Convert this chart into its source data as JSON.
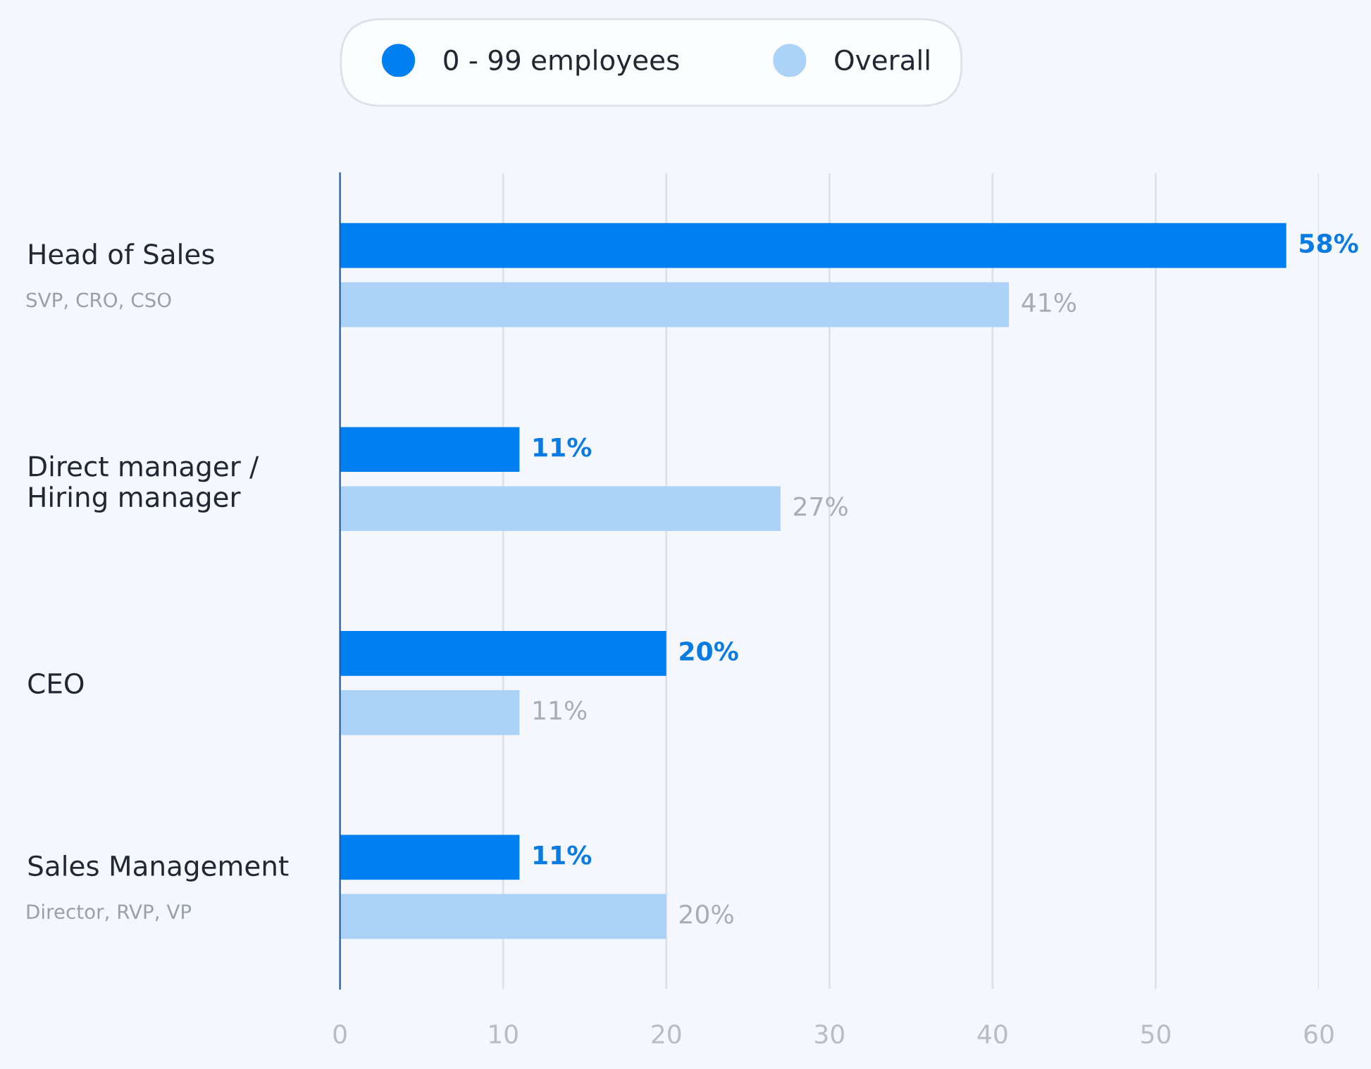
{
  "chart_data": {
    "type": "bar",
    "orientation": "horizontal",
    "categories": [
      "Head of Sales",
      "Direct manager /\nHiring manager",
      "CEO",
      "Sales Management"
    ],
    "series": [
      {
        "name": "0 - 99 employees",
        "color": "#0080f0",
        "values": [
          58,
          11,
          20,
          11
        ],
        "value_labels": [
          "58%",
          "11%",
          "20%",
          "11%"
        ]
      },
      {
        "name": "Overall",
        "color": "#acd3f7",
        "values": [
          41,
          27,
          11,
          20
        ],
        "value_labels": [
          "41%",
          "27%",
          "11%",
          "20%"
        ]
      }
    ],
    "annotations": [
      "SVP, CRO, CSO",
      "Director, RVP, VP"
    ],
    "xlim": [
      0,
      60
    ],
    "xticks": [
      0,
      10,
      20,
      30,
      40,
      50,
      60
    ],
    "grid": "x",
    "legend": "top"
  }
}
